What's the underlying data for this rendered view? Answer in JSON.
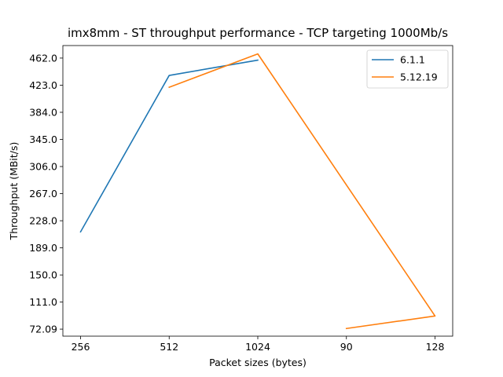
{
  "chart_data": {
    "type": "line",
    "title": "imx8mm - ST throughput performance - TCP targeting 1000Mb/s",
    "xlabel": "Packet sizes (bytes)",
    "ylabel": "Throughput (MBit/s)",
    "categories": [
      "256",
      "512",
      "1024",
      "90",
      "128"
    ],
    "y_ticks": [
      "72.09",
      "111.0",
      "150.0",
      "189.0",
      "228.0",
      "267.0",
      "306.0",
      "345.0",
      "384.0",
      "423.0",
      "462.0"
    ],
    "ylim": [
      62,
      480
    ],
    "series": [
      {
        "name": "6.1.1",
        "color": "#1f77b4",
        "points": [
          {
            "category": "256",
            "y": 212
          },
          {
            "category": "512",
            "y": 437
          },
          {
            "category": "1024",
            "y": 459
          }
        ]
      },
      {
        "name": "5.12.19",
        "color": "#ff7f0e",
        "points": [
          {
            "category": "512",
            "y": 420
          },
          {
            "category": "1024",
            "y": 468
          },
          {
            "category": "128",
            "y": 91
          },
          {
            "category": "90",
            "y": 73
          }
        ]
      }
    ],
    "legend_position": "top-right",
    "grid": false
  }
}
